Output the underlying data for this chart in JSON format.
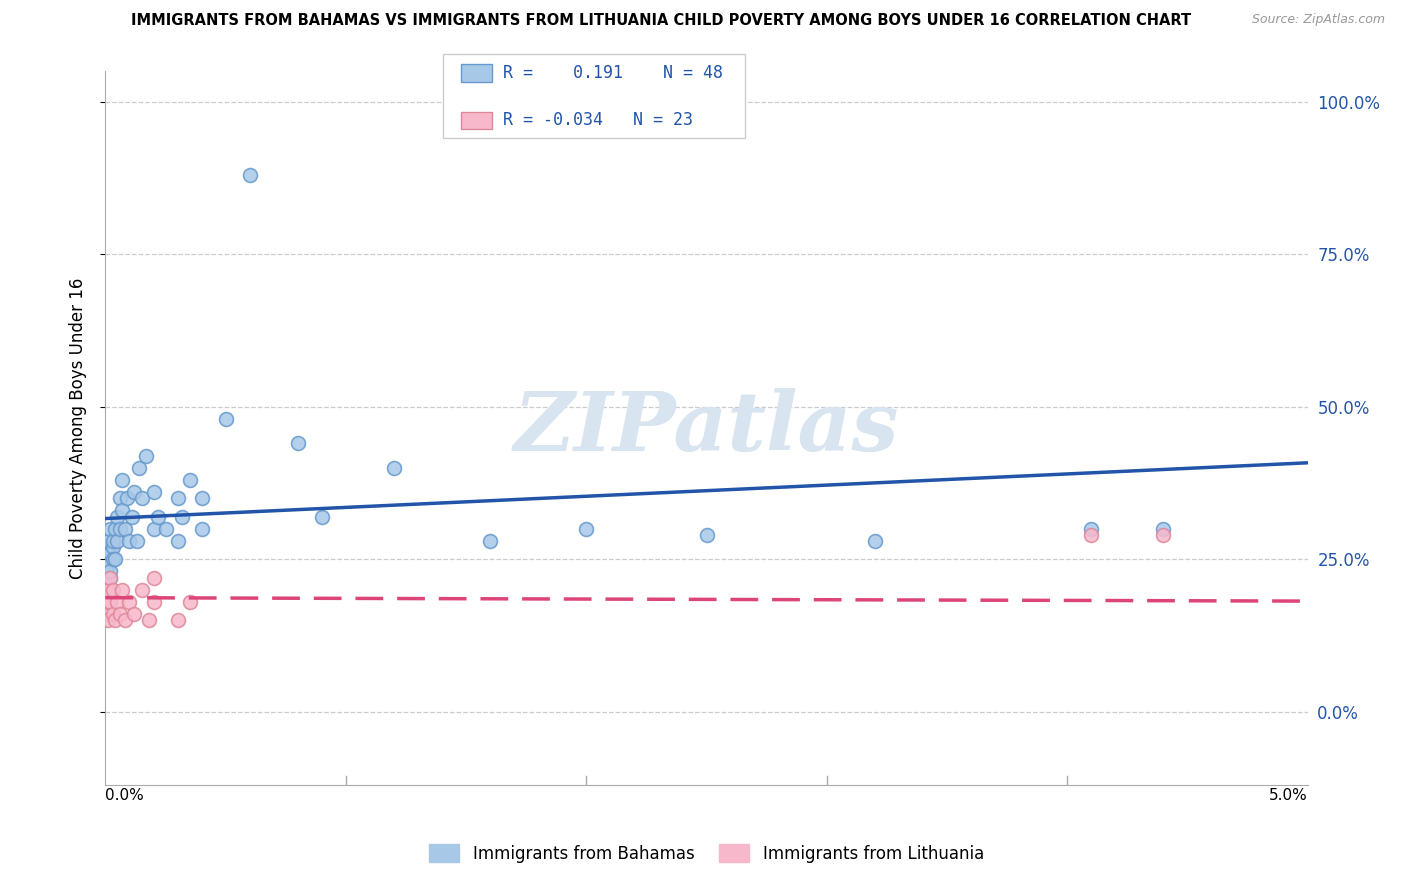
{
  "title": "IMMIGRANTS FROM BAHAMAS VS IMMIGRANTS FROM LITHUANIA CHILD POVERTY AMONG BOYS UNDER 16 CORRELATION CHART",
  "source": "Source: ZipAtlas.com",
  "ylabel": "Child Poverty Among Boys Under 16",
  "ytick_labels": [
    "100.0%",
    "75.0%",
    "50.0%",
    "25.0%",
    "0.0%"
  ],
  "ytick_values": [
    1.0,
    0.75,
    0.5,
    0.25,
    0.0
  ],
  "xmin": 0.0,
  "xmax": 0.05,
  "ymin": -0.12,
  "ymax": 1.05,
  "bahamas_R": 0.191,
  "bahamas_N": 48,
  "lithuania_R": -0.034,
  "lithuania_N": 23,
  "bahamas_dot_color": "#a8c8e8",
  "bahamas_edge_color": "#6699cc",
  "lithuania_dot_color": "#f8b8cc",
  "lithuania_edge_color": "#dd8899",
  "bahamas_line_color": "#2255aa",
  "lithuania_line_color": "#dd4477",
  "watermark_color": "#d8e4f0",
  "watermark": "ZIPatlas",
  "grid_color": "#cccccc",
  "bahamas_x": [
    0.0001,
    0.0001,
    0.0001,
    0.0002,
    0.0002,
    0.0002,
    0.0002,
    0.0003,
    0.0003,
    0.0003,
    0.0004,
    0.0004,
    0.0005,
    0.0005,
    0.0006,
    0.0006,
    0.0007,
    0.0007,
    0.0008,
    0.0009,
    0.001,
    0.0011,
    0.0012,
    0.0013,
    0.0014,
    0.0015,
    0.0017,
    0.002,
    0.002,
    0.0022,
    0.0025,
    0.003,
    0.003,
    0.0032,
    0.0035,
    0.004,
    0.004,
    0.005,
    0.006,
    0.008,
    0.009,
    0.012,
    0.016,
    0.02,
    0.025,
    0.032,
    0.041,
    0.044
  ],
  "bahamas_y": [
    0.26,
    0.24,
    0.28,
    0.22,
    0.26,
    0.3,
    0.23,
    0.27,
    0.25,
    0.28,
    0.3,
    0.25,
    0.32,
    0.28,
    0.35,
    0.3,
    0.38,
    0.33,
    0.3,
    0.35,
    0.28,
    0.32,
    0.36,
    0.28,
    0.4,
    0.35,
    0.42,
    0.3,
    0.36,
    0.32,
    0.3,
    0.35,
    0.28,
    0.32,
    0.38,
    0.3,
    0.35,
    0.48,
    0.88,
    0.44,
    0.32,
    0.4,
    0.28,
    0.3,
    0.29,
    0.28,
    0.3,
    0.3
  ],
  "lithuania_x": [
    5e-05,
    0.0001,
    0.0001,
    0.0001,
    0.0002,
    0.0002,
    0.0003,
    0.0003,
    0.0004,
    0.0005,
    0.0006,
    0.0007,
    0.0008,
    0.001,
    0.0012,
    0.0015,
    0.0018,
    0.002,
    0.002,
    0.003,
    0.0035,
    0.041,
    0.044
  ],
  "lithuania_y": [
    0.16,
    0.18,
    0.15,
    0.2,
    0.18,
    0.22,
    0.16,
    0.2,
    0.15,
    0.18,
    0.16,
    0.2,
    0.15,
    0.18,
    0.16,
    0.2,
    0.15,
    0.22,
    0.18,
    0.15,
    0.18,
    0.29,
    0.29
  ]
}
